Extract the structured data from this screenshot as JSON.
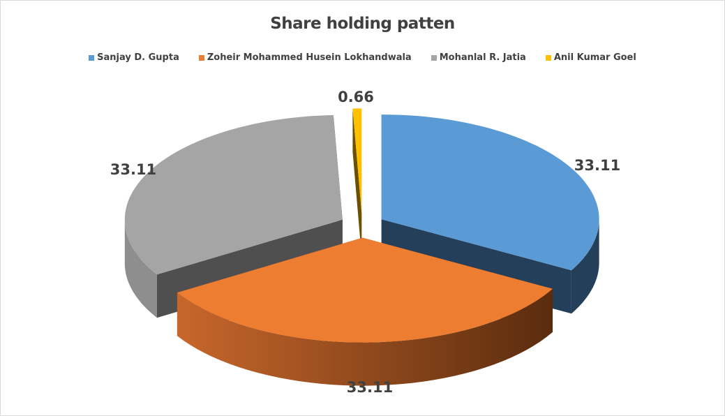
{
  "chart_data": {
    "type": "pie",
    "variant": "3d-exploded",
    "title": "Share holding patten",
    "legend_position": "top",
    "series": [
      {
        "name": "Sanjay D. Gupta",
        "value": 33.11,
        "label": "33.11",
        "color": "#5B9BD5",
        "side_color": "#243F59"
      },
      {
        "name": "Zoheir Mohammed Husein Lokhandwala",
        "value": 33.11,
        "label": "33.11",
        "color": "#ED7D31",
        "side_color": "#7A3A12"
      },
      {
        "name": "Mohanlal R. Jatia",
        "value": 33.11,
        "label": "33.11",
        "color": "#A5A5A5",
        "side_color": "#555555"
      },
      {
        "name": "Anil Kumar Goel",
        "value": 0.66,
        "label": "0.66",
        "color": "#FFC000",
        "side_color": "#6B5000"
      }
    ]
  }
}
